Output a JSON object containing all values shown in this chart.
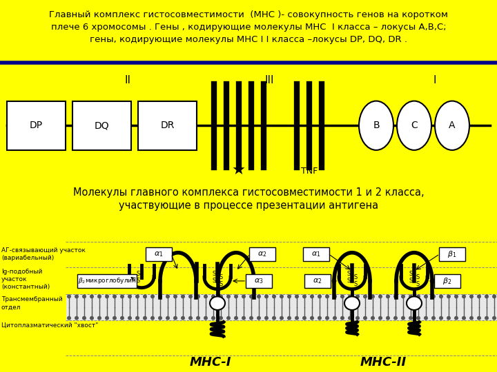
{
  "top_text": "Главный комплекс гистосовместимости  (МНС )- совокупность генов на коротком\nплече 6 хромосомы . Гены , кодирующие молекулы МНС  I класса – локусы А,В,С;\nгены, кодирующие молекулы МНС I I класса –локусы DP, DQ, DR .",
  "mid_text_line1": "Молекулы главного комплекса гистосовместимости 1 и 2 класса,",
  "mid_text_line2": "участвующие в процессе презентации антигена",
  "top_bg": "#FFFF00",
  "chrom_bg": "#FFFFFF",
  "bot_bg": "#FFFFF0",
  "border_color": "#00008B",
  "text_color": "#000000",
  "label_ag": "АГ-связывающий участок\n(вариабельный)",
  "label_ig": "Ig-подобный\nучасток\n(константный)",
  "label_trans": "Трансмембранный\nотдел",
  "label_cyto": "Цитоплазматический \"хвост\"",
  "label_mhc1": "МНС-I",
  "label_mhc2": "МНС-II",
  "label_b2m": "β₂микроглобулин"
}
